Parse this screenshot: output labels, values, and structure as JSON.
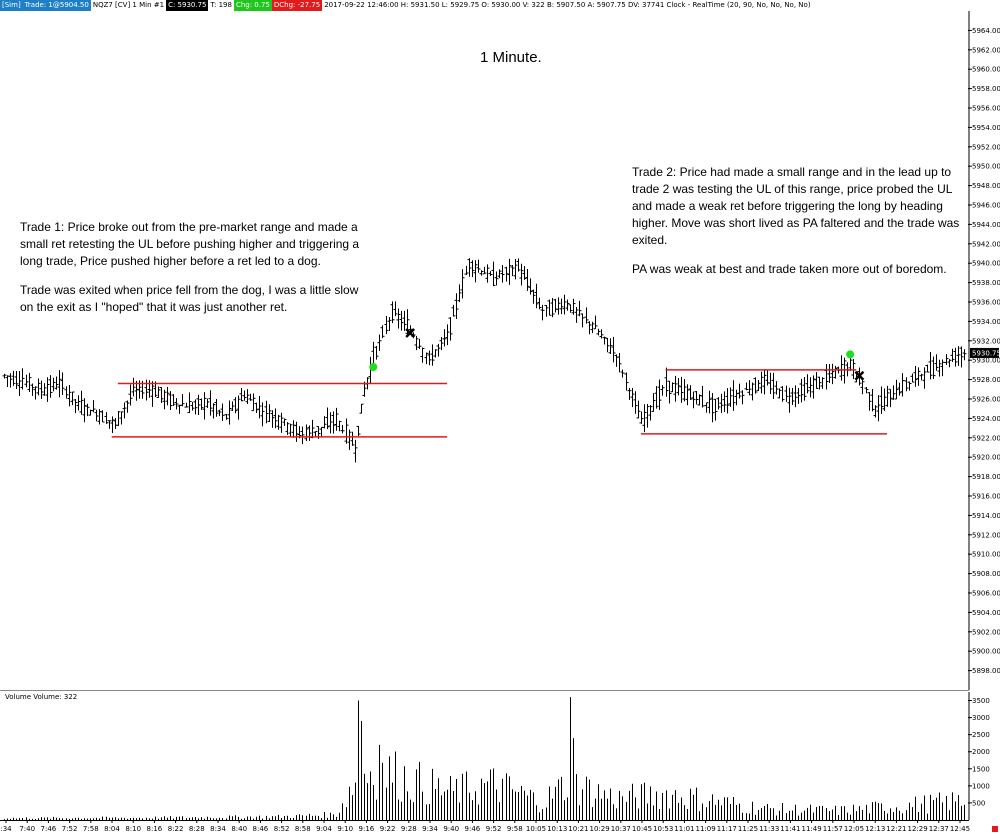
{
  "header": {
    "sim": "[Sim]",
    "trade": "Trade: 1@5904.50",
    "instrument": "NQZ7 [CV]  1 Min   #1",
    "close": "C: 5930.75",
    "ticks": "T: 198",
    "chg": "Chg: 0.75",
    "dchg": "DChg: -27.75",
    "info": "2017-09-22 12:46:00  H: 5931.50  L: 5929.75  O: 5930.00  V: 322  B: 5907.50  A: 5907.75  DV: 37741  Clock - RealTime  (20, 90, No, No, No, No)"
  },
  "title": "1 Minute.",
  "annotations": {
    "trade1_p1": "Trade 1:  Price broke out from the pre-market range and made a small ret retesting the UL before pushing higher and triggering a long trade, Price pushed higher before a ret led to a dog.",
    "trade1_p2": "Trade was exited when price fell from the dog, I was a little slow on the exit as I \"hoped\" that it was just another ret.",
    "trade2_p1": "Trade 2:  Price had made a small range and in the lead up to trade 2 was testing the UL of this range, price probed the UL and made a weak ret before triggering the long by heading higher.  Move was short lived as PA faltered and the trade was exited.",
    "trade2_p2": "PA was weak at best and trade taken more out of boredom."
  },
  "volume_label": "Volume  Volume: 322",
  "colors": {
    "bars": "#000000",
    "range_lines": "#e11b1b",
    "entry": "#22dd22",
    "exit": "#000000",
    "price_tag": "#000000"
  },
  "chart_data": {
    "type": "ohlc",
    "price_axis": {
      "ylim": [
        5896.0,
        5966.0
      ],
      "ticks": [
        "5964.00",
        "5962.00",
        "5960.00",
        "5958.00",
        "5956.00",
        "5954.00",
        "5952.00",
        "5950.00",
        "5948.00",
        "5946.00",
        "5944.00",
        "5942.00",
        "5940.00",
        "5938.00",
        "5936.00",
        "5934.00",
        "5932.00",
        "5930.00",
        "5928.00",
        "5926.00",
        "5924.00",
        "5922.00",
        "5920.00",
        "5918.00",
        "5916.00",
        "5914.00",
        "5912.00",
        "5910.00",
        "5908.00",
        "5906.00",
        "5904.00",
        "5902.00",
        "5900.00",
        "5898.00"
      ],
      "last_price": "5930.75"
    },
    "volume_axis": {
      "ylim": [
        0,
        3750
      ],
      "ticks": [
        "3500",
        "3000",
        "2500",
        "2000",
        "1500",
        "1000",
        "500"
      ]
    },
    "time_axis": {
      "range": [
        "07:34",
        "12:46"
      ],
      "labels": [
        ":34",
        "7:40",
        "7:46",
        "7:52",
        "7:58",
        "8:04",
        "8:10",
        "8:16",
        "8:22",
        "8:28",
        "8:34",
        "8:40",
        "8:46",
        "8:52",
        "8:58",
        "9:04",
        "9:10",
        "9:16",
        "9:22",
        "9:28",
        "9:34",
        "9:40",
        "9:46",
        "9:52",
        "9:58",
        "10:05",
        "10:13",
        "10:21",
        "10:29",
        "10:37",
        "10:45",
        "10:53",
        "11:01",
        "11:09",
        "11:17",
        "11:25",
        "11:33",
        "11:41",
        "11:49",
        "11:57",
        "12:05",
        "12:13",
        "12:21",
        "12:29",
        "12:37",
        "12:45"
      ]
    },
    "price_path": [
      [
        "07:34",
        5928.4
      ],
      [
        "07:40",
        5927.8
      ],
      [
        "07:46",
        5926.9
      ],
      [
        "07:52",
        5927.6
      ],
      [
        "07:58",
        5925.4
      ],
      [
        "08:04",
        5924.6
      ],
      [
        "08:10",
        5923.4
      ],
      [
        "08:16",
        5926.8
      ],
      [
        "08:22",
        5927.0
      ],
      [
        "08:28",
        5925.9
      ],
      [
        "08:34",
        5925.2
      ],
      [
        "08:40",
        5925.6
      ],
      [
        "08:46",
        5924.2
      ],
      [
        "08:52",
        5926.4
      ],
      [
        "08:58",
        5924.8
      ],
      [
        "09:04",
        5923.8
      ],
      [
        "09:10",
        5922.4
      ],
      [
        "09:16",
        5922.8
      ],
      [
        "09:22",
        5923.9
      ],
      [
        "09:28",
        5921.0
      ],
      [
        "09:31",
        5926.8
      ],
      [
        "09:34",
        5930.2
      ],
      [
        "09:40",
        5935.0
      ],
      [
        "09:46",
        5933.2
      ],
      [
        "09:52",
        5930.0
      ],
      [
        "09:58",
        5932.5
      ],
      [
        "10:05",
        5940.0
      ],
      [
        "10:13",
        5938.5
      ],
      [
        "10:21",
        5939.6
      ],
      [
        "10:29",
        5935.2
      ],
      [
        "10:37",
        5935.8
      ],
      [
        "10:45",
        5933.6
      ],
      [
        "10:53",
        5930.6
      ],
      [
        "11:01",
        5923.6
      ],
      [
        "11:09",
        5927.4
      ],
      [
        "11:17",
        5926.4
      ],
      [
        "11:25",
        5925.2
      ],
      [
        "11:33",
        5926.6
      ],
      [
        "11:41",
        5927.8
      ],
      [
        "11:49",
        5926.2
      ],
      [
        "11:57",
        5927.4
      ],
      [
        "12:05",
        5928.9
      ],
      [
        "12:09",
        5929.5
      ],
      [
        "12:13",
        5927.6
      ],
      [
        "12:17",
        5925.0
      ],
      [
        "12:21",
        5926.0
      ],
      [
        "12:29",
        5928.0
      ],
      [
        "12:37",
        5929.4
      ],
      [
        "12:45",
        5930.75
      ]
    ],
    "volume_profile": [
      [
        "07:34",
        60
      ],
      [
        "08:16",
        70
      ],
      [
        "09:04",
        110
      ],
      [
        "09:22",
        180
      ],
      [
        "09:28",
        1300
      ],
      [
        "09:34",
        1700
      ],
      [
        "09:58",
        900
      ],
      [
        "10:13",
        1150
      ],
      [
        "10:29",
        600
      ],
      [
        "10:37",
        1200
      ],
      [
        "10:53",
        700
      ],
      [
        "11:09",
        850
      ],
      [
        "11:41",
        360
      ],
      [
        "12:05",
        300
      ],
      [
        "12:21",
        420
      ],
      [
        "12:45",
        620
      ]
    ],
    "volume_spikes": [
      [
        "09:29",
        3500
      ],
      [
        "10:38",
        3600
      ],
      [
        "09:30",
        2900
      ],
      [
        "09:36",
        2200
      ],
      [
        "10:39",
        2400
      ]
    ],
    "range_lines": [
      {
        "label": "Trade 1 range high",
        "price": 5927.6,
        "from": "08:11",
        "to": "09:58"
      },
      {
        "label": "Trade 1 range low",
        "price": 5922.1,
        "from": "08:09",
        "to": "09:58"
      },
      {
        "label": "Trade 2 range high",
        "price": 5929.0,
        "from": "11:09",
        "to": "12:11"
      },
      {
        "label": "Trade 2 range low",
        "price": 5922.4,
        "from": "11:01",
        "to": "12:21"
      }
    ],
    "trades": [
      {
        "trade": 1,
        "entry_time": "09:34",
        "entry_price": 5929.3,
        "exit_time": "09:46",
        "exit_price": 5932.8
      },
      {
        "trade": 2,
        "entry_time": "12:09",
        "entry_price": 5930.6,
        "exit_time": "12:12",
        "exit_price": 5928.4
      }
    ]
  }
}
